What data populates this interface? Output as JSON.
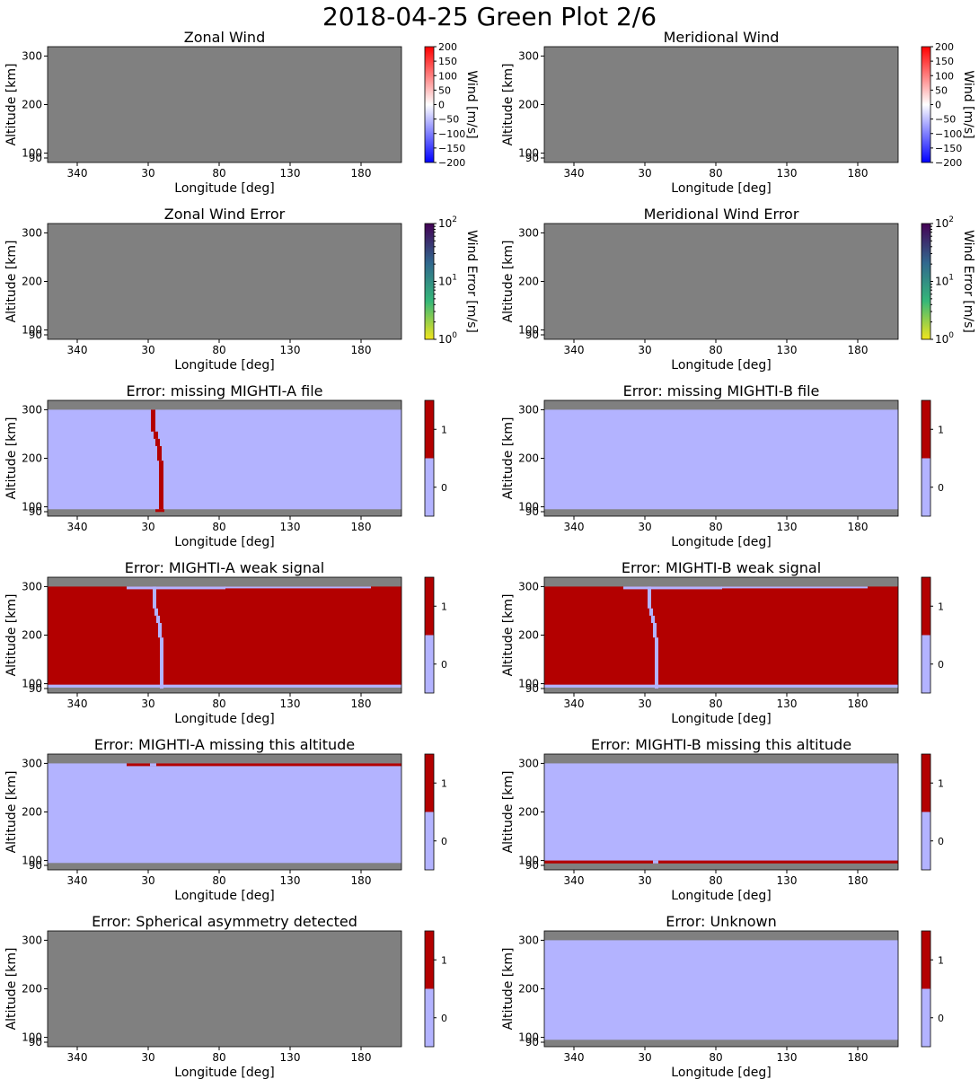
{
  "figure": {
    "title": "2018-04-25 Green Plot 2/6"
  },
  "colors": {
    "no_data": "#808080",
    "flag_off": "#b3b3ff",
    "flag_on": "#b30000",
    "wind_cmap": [
      "#0000ff",
      "#ffffff",
      "#ff0000"
    ],
    "error_cmap": [
      "#f1e51d",
      "#35b779",
      "#31688e",
      "#440154"
    ]
  },
  "chart_data": [
    {
      "id": "zonal-wind",
      "type": "heatmap",
      "title": "Zonal Wind",
      "xlabel": "Longitude [deg]",
      "ylabel": "Altitude [km]",
      "xticks": [
        "340",
        "30",
        "80",
        "130",
        "180"
      ],
      "yticks": [
        "300",
        "200",
        "100",
        "90"
      ],
      "colorbar": {
        "kind": "wind",
        "label": "Wind [m/s]",
        "ticks": [
          "200",
          "150",
          "100",
          "50",
          "0",
          "−50",
          "−100",
          "−150",
          "−200"
        ]
      },
      "content": "no-data"
    },
    {
      "id": "meridional-wind",
      "type": "heatmap",
      "title": "Meridional Wind",
      "xlabel": "Longitude [deg]",
      "ylabel": "Altitude [km]",
      "xticks": [
        "340",
        "30",
        "80",
        "130",
        "180"
      ],
      "yticks": [
        "300",
        "200",
        "100",
        "90"
      ],
      "colorbar": {
        "kind": "wind",
        "label": "Wind [m/s]",
        "ticks": [
          "200",
          "150",
          "100",
          "50",
          "0",
          "−50",
          "−100",
          "−150",
          "−200"
        ]
      },
      "content": "no-data"
    },
    {
      "id": "zonal-wind-error",
      "type": "heatmap",
      "title": "Zonal Wind Error",
      "xlabel": "Longitude [deg]",
      "ylabel": "Altitude [km]",
      "xticks": [
        "340",
        "30",
        "80",
        "130",
        "180"
      ],
      "yticks": [
        "300",
        "200",
        "100",
        "90"
      ],
      "colorbar": {
        "kind": "log",
        "label": "Wind Error [m/s]",
        "ticks": [
          "10",
          "10",
          "10"
        ],
        "exponents": [
          "2",
          "1",
          "0"
        ]
      },
      "content": "no-data"
    },
    {
      "id": "meridional-wind-error",
      "type": "heatmap",
      "title": "Meridional Wind Error",
      "xlabel": "Longitude [deg]",
      "ylabel": "Altitude [km]",
      "xticks": [
        "340",
        "30",
        "80",
        "130",
        "180"
      ],
      "yticks": [
        "300",
        "200",
        "100",
        "90"
      ],
      "colorbar": {
        "kind": "log",
        "label": "Wind Error [m/s]",
        "ticks": [
          "10",
          "10",
          "10"
        ],
        "exponents": [
          "2",
          "1",
          "0"
        ]
      },
      "content": "no-data"
    },
    {
      "id": "missing-mighti-a-file",
      "type": "heatmap",
      "title": "Error: missing MIGHTI-A file",
      "xlabel": "Longitude [deg]",
      "ylabel": "Altitude [km]",
      "xticks": [
        "340",
        "30",
        "80",
        "130",
        "180"
      ],
      "yticks": [
        "300",
        "200",
        "100",
        "90"
      ],
      "colorbar": {
        "kind": "flag",
        "label": "",
        "ticks": [
          "1",
          "0"
        ]
      },
      "content": "flag-missing-a"
    },
    {
      "id": "missing-mighti-b-file",
      "type": "heatmap",
      "title": "Error: missing MIGHTI-B file",
      "xlabel": "Longitude [deg]",
      "ylabel": "Altitude [km]",
      "xticks": [
        "340",
        "30",
        "80",
        "130",
        "180"
      ],
      "yticks": [
        "300",
        "200",
        "100",
        "90"
      ],
      "colorbar": {
        "kind": "flag",
        "label": "",
        "ticks": [
          "1",
          "0"
        ]
      },
      "content": "flag-all-off"
    },
    {
      "id": "mighti-a-weak-signal",
      "type": "heatmap",
      "title": "Error: MIGHTI-A weak signal",
      "xlabel": "Longitude [deg]",
      "ylabel": "Altitude [km]",
      "xticks": [
        "340",
        "30",
        "80",
        "130",
        "180"
      ],
      "yticks": [
        "300",
        "200",
        "100",
        "90"
      ],
      "colorbar": {
        "kind": "flag",
        "label": "",
        "ticks": [
          "1",
          "0"
        ]
      },
      "content": "flag-weak-a"
    },
    {
      "id": "mighti-b-weak-signal",
      "type": "heatmap",
      "title": "Error: MIGHTI-B weak signal",
      "xlabel": "Longitude [deg]",
      "ylabel": "Altitude [km]",
      "xticks": [
        "340",
        "30",
        "80",
        "130",
        "180"
      ],
      "yticks": [
        "300",
        "200",
        "100",
        "90"
      ],
      "colorbar": {
        "kind": "flag",
        "label": "",
        "ticks": [
          "1",
          "0"
        ]
      },
      "content": "flag-weak-b"
    },
    {
      "id": "mighti-a-missing-altitude",
      "type": "heatmap",
      "title": "Error: MIGHTI-A missing this altitude",
      "xlabel": "Longitude [deg]",
      "ylabel": "Altitude [km]",
      "xticks": [
        "340",
        "30",
        "80",
        "130",
        "180"
      ],
      "yticks": [
        "300",
        "200",
        "100",
        "90"
      ],
      "colorbar": {
        "kind": "flag",
        "label": "",
        "ticks": [
          "1",
          "0"
        ]
      },
      "content": "flag-alt-a"
    },
    {
      "id": "mighti-b-missing-altitude",
      "type": "heatmap",
      "title": "Error: MIGHTI-B missing this altitude",
      "xlabel": "Longitude [deg]",
      "ylabel": "Altitude [km]",
      "xticks": [
        "340",
        "30",
        "80",
        "130",
        "180"
      ],
      "yticks": [
        "300",
        "200",
        "100",
        "90"
      ],
      "colorbar": {
        "kind": "flag",
        "label": "",
        "ticks": [
          "1",
          "0"
        ]
      },
      "content": "flag-alt-b"
    },
    {
      "id": "spherical-asymmetry",
      "type": "heatmap",
      "title": "Error: Spherical asymmetry detected",
      "xlabel": "Longitude [deg]",
      "ylabel": "Altitude [km]",
      "xticks": [
        "340",
        "30",
        "80",
        "130",
        "180"
      ],
      "yticks": [
        "300",
        "200",
        "100",
        "90"
      ],
      "colorbar": {
        "kind": "flag",
        "label": "",
        "ticks": [
          "1",
          "0"
        ]
      },
      "content": "no-data"
    },
    {
      "id": "unknown",
      "type": "heatmap",
      "title": "Error: Unknown",
      "xlabel": "Longitude [deg]",
      "ylabel": "Altitude [km]",
      "xticks": [
        "340",
        "30",
        "80",
        "130",
        "180"
      ],
      "yticks": [
        "300",
        "200",
        "100",
        "90"
      ],
      "colorbar": {
        "kind": "flag",
        "label": "",
        "ticks": [
          "1",
          "0"
        ]
      },
      "content": "flag-all-off"
    }
  ]
}
